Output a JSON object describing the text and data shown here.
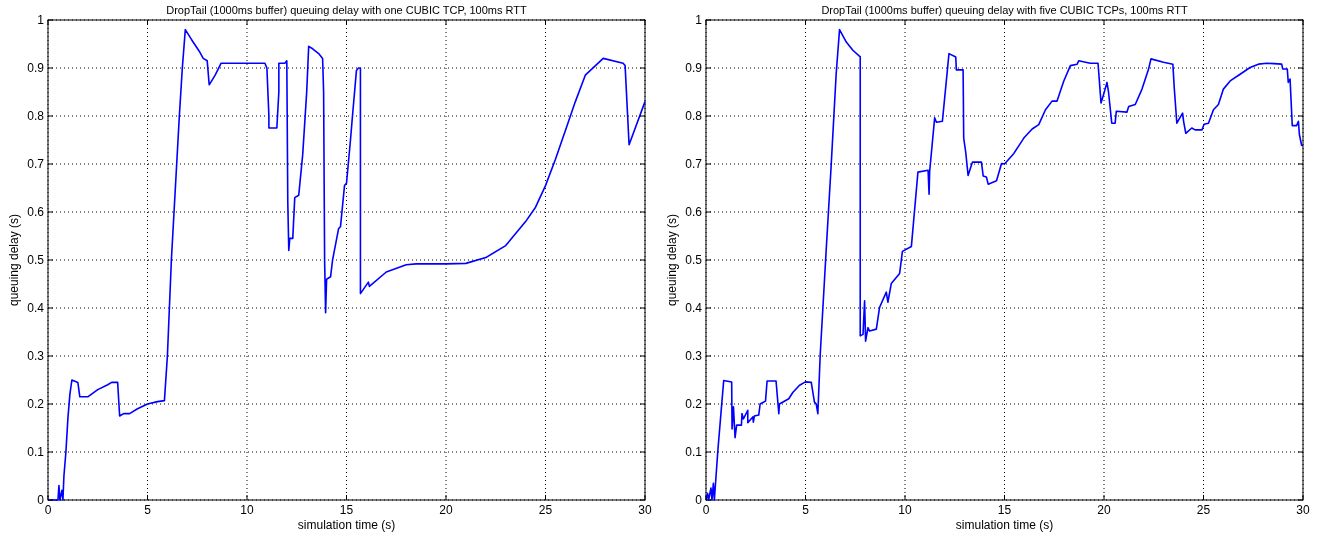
{
  "chart_data": [
    {
      "type": "line",
      "title": "DropTail (1000ms buffer) queuing delay with one CUBIC TCP, 100ms RTT",
      "xlabel": "simulation time (s)",
      "ylabel": "queuing delay (s)",
      "xlim": [
        0,
        30
      ],
      "ylim": [
        0,
        1
      ],
      "xticks": [
        0,
        5,
        10,
        15,
        20,
        25,
        30
      ],
      "yticks": [
        0,
        0.1,
        0.2,
        0.3,
        0.4,
        0.5,
        0.6,
        0.7,
        0.8,
        0.9,
        1
      ],
      "grid": true,
      "line_style": "solid",
      "series": [
        {
          "color": "#0000ff",
          "x": [
            0,
            0.5,
            0.55,
            0.6,
            0.7,
            0.75,
            0.8,
            0.9,
            1.0,
            1.1,
            1.2,
            1.5,
            1.6,
            2.0,
            2.5,
            3.0,
            3.2,
            3.5,
            3.6,
            3.8,
            4.1,
            4.5,
            5.0,
            5.5,
            5.85,
            6.0,
            6.2,
            6.4,
            6.6,
            6.75,
            6.9,
            7.2,
            7.6,
            7.8,
            8.0,
            8.1,
            8.4,
            8.7,
            9,
            10,
            10.9,
            11.0,
            11.1,
            11.1,
            11.5,
            11.6,
            11.6,
            11.9,
            12.0,
            12.05,
            12.1,
            12.15,
            12.3,
            12.4,
            12.6,
            12.8,
            13.0,
            13.1,
            13.3,
            13.6,
            13.8,
            13.85,
            13.9,
            13.95,
            14.0,
            14.2,
            14.3,
            14.6,
            14.7,
            14.9,
            15.0,
            15.2,
            15.3,
            15.5,
            15.6,
            15.7,
            15.7,
            16.1,
            16.15,
            17,
            18,
            18.5,
            20,
            21,
            22,
            23,
            24,
            24.5,
            25,
            25.5,
            26,
            26.5,
            27,
            27.9,
            28.9,
            29.0,
            29.2,
            30
          ],
          "values": [
            0,
            0,
            0.03,
            0,
            0.02,
            0,
            0.05,
            0.1,
            0.17,
            0.22,
            0.25,
            0.245,
            0.215,
            0.215,
            0.23,
            0.24,
            0.245,
            0.245,
            0.175,
            0.18,
            0.18,
            0.19,
            0.2,
            0.205,
            0.207,
            0.3,
            0.5,
            0.65,
            0.8,
            0.9,
            0.98,
            0.96,
            0.935,
            0.92,
            0.915,
            0.865,
            0.885,
            0.91,
            0.91,
            0.91,
            0.91,
            0.9,
            0.8,
            0.775,
            0.775,
            0.85,
            0.91,
            0.91,
            0.915,
            0.62,
            0.52,
            0.545,
            0.545,
            0.63,
            0.635,
            0.72,
            0.85,
            0.945,
            0.94,
            0.93,
            0.92,
            0.85,
            0.5,
            0.39,
            0.46,
            0.465,
            0.5,
            0.565,
            0.57,
            0.655,
            0.66,
            0.75,
            0.8,
            0.895,
            0.9,
            0.9,
            0.43,
            0.454,
            0.445,
            0.475,
            0.49,
            0.492,
            0.492,
            0.493,
            0.505,
            0.53,
            0.58,
            0.61,
            0.655,
            0.71,
            0.77,
            0.83,
            0.885,
            0.92,
            0.91,
            0.905,
            0.74,
            0.83
          ]
        }
      ]
    },
    {
      "type": "line",
      "title": "DropTail (1000ms buffer) queuing delay with five CUBIC TCPs, 100ms RTT",
      "xlabel": "simulation time (s)",
      "ylabel": "queuing delay (s)",
      "xlim": [
        0,
        30
      ],
      "ylim": [
        0,
        1
      ],
      "xticks": [
        0,
        5,
        10,
        15,
        20,
        25,
        30
      ],
      "yticks": [
        0,
        0.1,
        0.2,
        0.3,
        0.4,
        0.5,
        0.6,
        0.7,
        0.8,
        0.9,
        1
      ],
      "grid": true,
      "line_style": "solid",
      "series": [
        {
          "color": "#0000ff",
          "x": [
            0,
            0.08,
            0.13,
            0.25,
            0.3,
            0.37,
            0.42,
            0.59,
            0.75,
            0.89,
            1.29,
            1.31,
            1.38,
            1.46,
            1.54,
            1.78,
            1.81,
            1.88,
            2.1,
            2.1,
            2.35,
            2.38,
            2.43,
            2.65,
            2.72,
            2.99,
            3.07,
            3.52,
            3.61,
            3.66,
            3.69,
            4.16,
            4.36,
            4.7,
            5.0,
            5.29,
            5.45,
            5.54,
            5.62,
            5.74,
            6.04,
            6.29,
            6.54,
            6.71,
            7.05,
            7.38,
            7.75,
            7.75,
            7.89,
            7.97,
            8.02,
            8.14,
            8.22,
            8.56,
            8.72,
            9.06,
            9.14,
            9.31,
            9.73,
            9.87,
            10.32,
            10.65,
            11.16,
            11.21,
            11.24,
            11.49,
            11.58,
            11.88,
            12.21,
            12.55,
            12.58,
            12.92,
            12.95,
            13.05,
            13.17,
            13.39,
            13.84,
            13.93,
            14.09,
            14.18,
            14.6,
            14.85,
            15.0,
            15.47,
            15.97,
            16.39,
            16.72,
            17.06,
            17.39,
            17.64,
            17.98,
            18.31,
            18.65,
            18.73,
            19.31,
            19.7,
            19.78,
            19.85,
            19.98,
            20.15,
            20.23,
            20.39,
            20.56,
            20.62,
            21.15,
            21.24,
            21.57,
            21.91,
            22.24,
            22.36,
            22.99,
            23.46,
            23.53,
            23.66,
            23.95,
            24.0,
            24.11,
            24.41,
            24.58,
            24.92,
            25.03,
            25.25,
            25.5,
            25.75,
            26.0,
            26.34,
            26.84,
            27.34,
            27.76,
            28.18,
            28.93,
            28.98,
            29.21,
            29.26,
            29.35,
            29.46,
            29.68,
            29.77,
            29.82,
            29.93,
            30
          ],
          "values": [
            0,
            0.014,
            0,
            0.025,
            0,
            0.035,
            0,
            0.1,
            0.18,
            0.249,
            0.246,
            0.148,
            0.194,
            0.13,
            0.156,
            0.156,
            0.18,
            0.169,
            0.187,
            0.161,
            0.173,
            0.162,
            0.175,
            0.177,
            0.2,
            0.206,
            0.248,
            0.248,
            0.204,
            0.18,
            0.2,
            0.211,
            0.224,
            0.239,
            0.246,
            0.245,
            0.204,
            0.2,
            0.18,
            0.303,
            0.521,
            0.697,
            0.887,
            0.98,
            0.954,
            0.937,
            0.923,
            0.342,
            0.345,
            0.415,
            0.331,
            0.359,
            0.352,
            0.356,
            0.401,
            0.433,
            0.412,
            0.451,
            0.472,
            0.518,
            0.528,
            0.683,
            0.687,
            0.637,
            0.685,
            0.796,
            0.787,
            0.789,
            0.93,
            0.923,
            0.896,
            0.896,
            0.754,
            0.725,
            0.676,
            0.704,
            0.704,
            0.675,
            0.673,
            0.658,
            0.665,
            0.701,
            0.7,
            0.722,
            0.754,
            0.773,
            0.782,
            0.813,
            0.831,
            0.831,
            0.873,
            0.905,
            0.908,
            0.915,
            0.91,
            0.91,
            0.866,
            0.827,
            0.845,
            0.87,
            0.849,
            0.785,
            0.785,
            0.81,
            0.808,
            0.82,
            0.824,
            0.856,
            0.898,
            0.919,
            0.912,
            0.908,
            0.859,
            0.785,
            0.806,
            0.789,
            0.764,
            0.775,
            0.771,
            0.771,
            0.783,
            0.785,
            0.813,
            0.824,
            0.856,
            0.873,
            0.887,
            0.901,
            0.908,
            0.91,
            0.908,
            0.898,
            0.898,
            0.87,
            0.877,
            0.78,
            0.78,
            0.789,
            0.761,
            0.739,
            0.738
          ]
        }
      ]
    }
  ]
}
